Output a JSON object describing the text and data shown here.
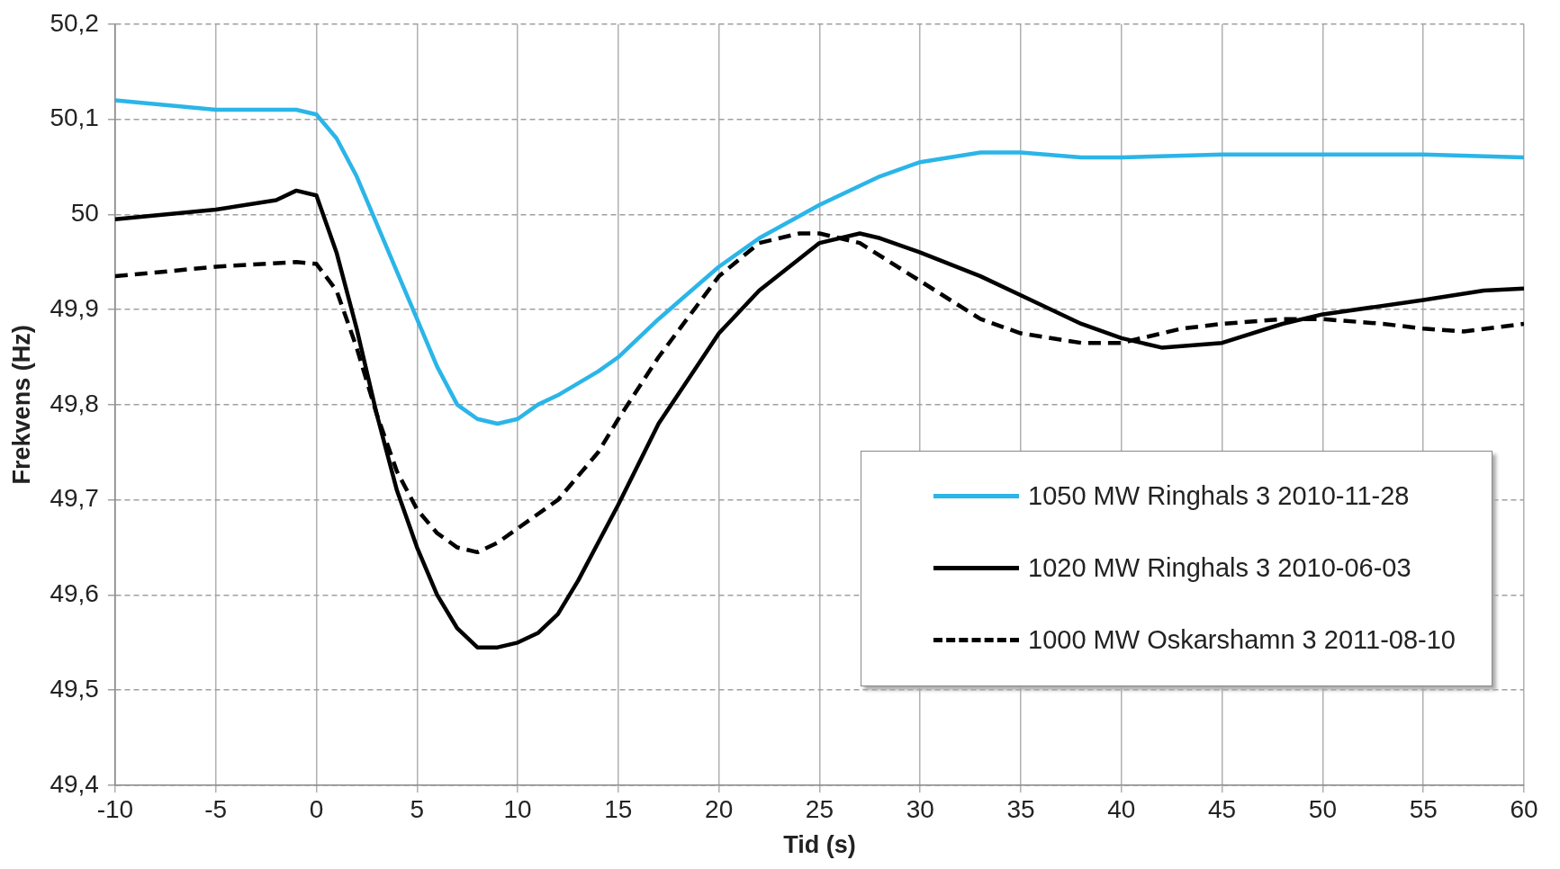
{
  "chart_data": {
    "type": "line",
    "xlabel": "Tid (s)",
    "ylabel": "Frekvens (Hz)",
    "xlim": [
      -10,
      60
    ],
    "xticks": [
      -10,
      -5,
      0,
      5,
      10,
      15,
      20,
      25,
      30,
      35,
      40,
      45,
      50,
      55,
      60
    ],
    "ylim": [
      49.4,
      50.2
    ],
    "yticks": [
      {
        "value": 49.4,
        "label": "49,4"
      },
      {
        "value": 49.5,
        "label": "49,5"
      },
      {
        "value": 49.6,
        "label": "49,6"
      },
      {
        "value": 49.7,
        "label": "49,7"
      },
      {
        "value": 49.8,
        "label": "49,8"
      },
      {
        "value": 49.9,
        "label": "49,9"
      },
      50,
      {
        "value": 50.1,
        "label": "50,1"
      },
      {
        "value": 50.2,
        "label": "50,2"
      }
    ],
    "grid": true,
    "legend": "bottom right",
    "marker": "none",
    "series": [
      {
        "name": "1050 MW Ringhals 3 2010-11-28",
        "color": "#2bb5e8",
        "line_style": "solid",
        "x": [
          -10,
          -5,
          -1,
          0,
          1,
          2,
          3,
          4,
          5,
          6,
          7,
          8,
          9,
          10,
          11,
          12,
          14,
          15,
          17,
          20,
          22,
          25,
          28,
          30,
          33,
          35,
          38,
          40,
          45,
          50,
          55,
          60
        ],
        "values": [
          50.12,
          50.11,
          50.11,
          50.105,
          50.08,
          50.04,
          49.99,
          49.94,
          49.89,
          49.84,
          49.8,
          49.785,
          49.78,
          49.785,
          49.8,
          49.81,
          49.835,
          49.85,
          49.89,
          49.945,
          49.975,
          50.01,
          50.04,
          50.055,
          50.065,
          50.065,
          50.06,
          50.06,
          50.063,
          50.063,
          50.063,
          50.06
        ]
      },
      {
        "name": "1020 MW Ringhals 3 2010-06-03",
        "color": "#000000",
        "line_style": "solid",
        "x": [
          -10,
          -5,
          -2,
          -1,
          0,
          1,
          2,
          3,
          4,
          5,
          6,
          7,
          8,
          9,
          10,
          11,
          12,
          13,
          14,
          15,
          17,
          20,
          22,
          25,
          27,
          28,
          30,
          33,
          35,
          38,
          40,
          42,
          45,
          48,
          50,
          55,
          58,
          60
        ],
        "values": [
          49.995,
          50.005,
          50.015,
          50.025,
          50.02,
          49.96,
          49.88,
          49.79,
          49.71,
          49.65,
          49.6,
          49.565,
          49.545,
          49.545,
          49.55,
          49.56,
          49.58,
          49.615,
          49.655,
          49.695,
          49.78,
          49.875,
          49.92,
          49.97,
          49.98,
          49.975,
          49.96,
          49.935,
          49.915,
          49.885,
          49.87,
          49.86,
          49.865,
          49.885,
          49.895,
          49.91,
          49.92,
          49.922
        ]
      },
      {
        "name": "1000 MW Oskarshamn 3 2011-08-10",
        "color": "#000000",
        "line_style": "dashed",
        "x": [
          -10,
          -5,
          -1,
          0,
          1,
          2,
          3,
          4,
          5,
          6,
          7,
          8,
          9,
          10,
          12,
          14,
          15,
          17,
          20,
          22,
          24,
          25,
          27,
          30,
          33,
          35,
          38,
          40,
          43,
          45,
          48,
          50,
          53,
          55,
          57,
          60
        ],
        "values": [
          49.935,
          49.945,
          49.95,
          49.948,
          49.92,
          49.86,
          49.79,
          49.73,
          49.69,
          49.665,
          49.65,
          49.645,
          49.655,
          49.67,
          49.7,
          49.75,
          49.785,
          49.85,
          49.935,
          49.97,
          49.98,
          49.98,
          49.97,
          49.93,
          49.89,
          49.875,
          49.865,
          49.865,
          49.88,
          49.885,
          49.89,
          49.89,
          49.885,
          49.88,
          49.877,
          49.885
        ]
      }
    ]
  }
}
